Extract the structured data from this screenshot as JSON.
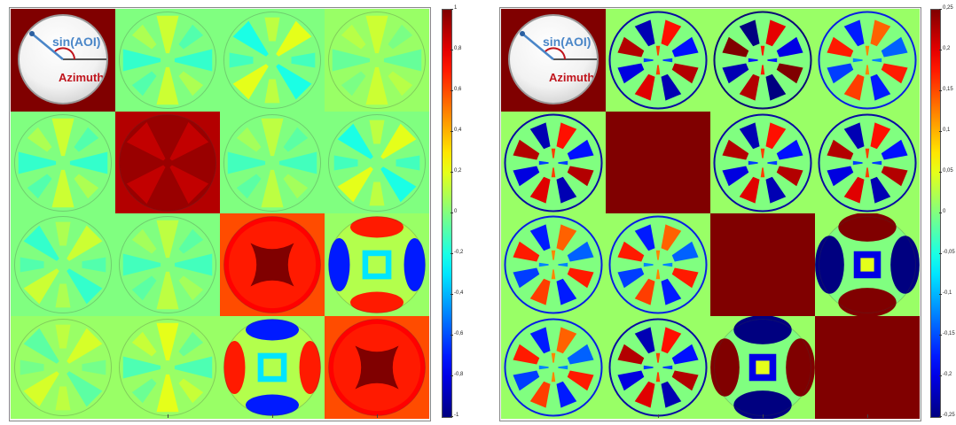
{
  "chart_data": [
    {
      "type": "heatmap",
      "grid": "4x4 Mueller matrix",
      "colormap": "jet",
      "colorbar_ticks": [
        "1",
        "0,8",
        "0,6",
        "0,4",
        "0,2",
        "0",
        "-0,2",
        "-0,4",
        "-0,6",
        "-0,8",
        "-1"
      ],
      "clim": [
        -1,
        1
      ],
      "inset": {
        "aoi_label": "sin(AOI)",
        "azimuth_label": "Azimuth"
      },
      "cells": [
        [
          {
            "pattern": "solid",
            "level": 1.0
          },
          {
            "pattern": "cross",
            "level": 0.0,
            "amp": 0.15
          },
          {
            "pattern": "diag",
            "level": 0.0,
            "amp": 0.2
          },
          {
            "pattern": "cross",
            "level": 0.05,
            "amp": 0.1
          }
        ],
        [
          {
            "pattern": "cross",
            "level": 0.0,
            "amp": 0.15
          },
          {
            "pattern": "dark",
            "level": 0.95,
            "amp": 0.08
          },
          {
            "pattern": "cross",
            "level": 0.0,
            "amp": 0.12
          },
          {
            "pattern": "diag",
            "level": 0.0,
            "amp": 0.2
          }
        ],
        [
          {
            "pattern": "diag",
            "level": 0.0,
            "amp": 0.15
          },
          {
            "pattern": "cross",
            "level": 0.0,
            "amp": 0.12
          },
          {
            "pattern": "star",
            "level": 0.75,
            "amp": 0.2
          },
          {
            "pattern": "quad",
            "level": 0.1,
            "amp": 0.75
          }
        ],
        [
          {
            "pattern": "diag",
            "level": 0.05,
            "amp": 0.12
          },
          {
            "pattern": "cross",
            "level": 0.05,
            "amp": 0.15
          },
          {
            "pattern": "quadinv",
            "level": 0.1,
            "amp": 0.75
          },
          {
            "pattern": "star",
            "level": 0.75,
            "amp": 0.2
          }
        ]
      ]
    },
    {
      "type": "heatmap",
      "grid": "4x4 Mueller matrix difference",
      "colormap": "jet",
      "colorbar_ticks": [
        "0,25",
        "0,2",
        "0,15",
        "0,1",
        "0,05",
        "0",
        "-0,05",
        "-0,1",
        "-0,15",
        "-0,2",
        "-0,25"
      ],
      "clim": [
        -0.25,
        0.25
      ],
      "inset": {
        "aoi_label": "sin(AOI)",
        "azimuth_label": "Azimuth"
      },
      "cells": [
        [
          {
            "pattern": "solid",
            "level": 1.0
          },
          {
            "pattern": "lobes",
            "level": 0.0,
            "amp": 0.9
          },
          {
            "pattern": "lobes",
            "level": 0.0,
            "amp": 1.0
          },
          {
            "pattern": "lobes",
            "level": 0.0,
            "amp": 0.7
          }
        ],
        [
          {
            "pattern": "lobes",
            "level": 0.0,
            "amp": 0.9
          },
          {
            "pattern": "solid",
            "level": 1.0
          },
          {
            "pattern": "lobes",
            "level": 0.0,
            "amp": 0.9
          },
          {
            "pattern": "lobes",
            "level": 0.0,
            "amp": 0.9
          }
        ],
        [
          {
            "pattern": "lobes",
            "level": 0.0,
            "amp": 0.7
          },
          {
            "pattern": "lobes",
            "level": 0.0,
            "amp": 0.7
          },
          {
            "pattern": "solid",
            "level": 1.0
          },
          {
            "pattern": "sat",
            "level": 0.0,
            "amp": 1.0
          }
        ],
        [
          {
            "pattern": "lobes",
            "level": 0.0,
            "amp": 0.7
          },
          {
            "pattern": "lobes",
            "level": 0.0,
            "amp": 0.9
          },
          {
            "pattern": "satinv",
            "level": 0.0,
            "amp": 1.0
          },
          {
            "pattern": "solid",
            "level": 1.0
          }
        ]
      ]
    }
  ]
}
